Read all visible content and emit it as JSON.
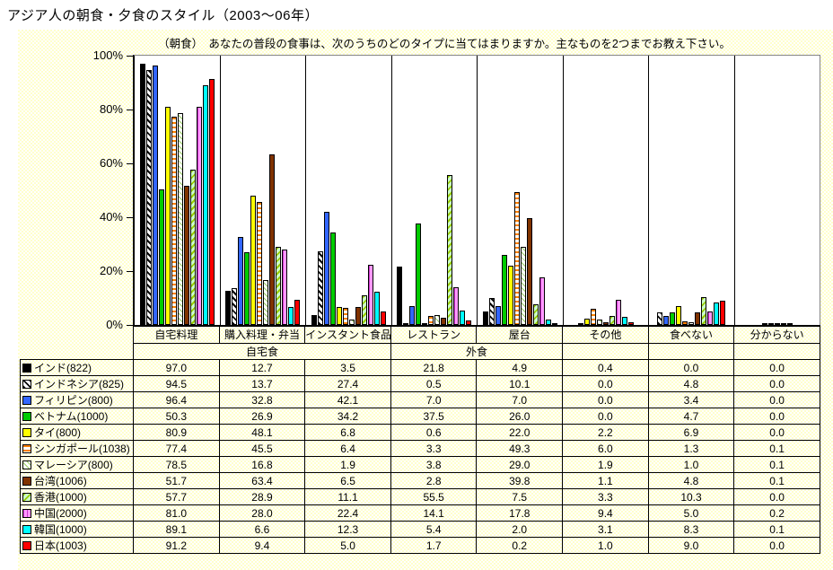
{
  "page_title": "アジア人の朝食・夕食のスタイル（2003〜06年）",
  "chart": {
    "subtitle": "（朝食）　あなたの普段の食事は、次のうちのどのタイプに当てはまりますか。主なものを2つまでお教え下さい。",
    "y_ticks": [
      "100%",
      "80%",
      "60%",
      "40%",
      "20%",
      "0%"
    ],
    "background_color": "#FFFFCC",
    "plot_background": "#FFFFFF"
  },
  "chart_data": {
    "type": "bar",
    "title": "アジア人の朝食・夕食のスタイル（2003〜06年）",
    "subtitle": "（朝食）　あなたの普段の食事は、次のうちのどのタイプに当てはまりますか。主なものを2つまでお教え下さい。",
    "ylabel": "",
    "xlabel": "",
    "ylim": [
      0,
      100
    ],
    "grid": "vertical-category-separators-only",
    "legend_position": "data-table-below",
    "categories": [
      "自宅料理",
      "購入料理・弁当",
      "インスタント食品",
      "レストラン",
      "屋台",
      "その他",
      "食べない",
      "分からない"
    ],
    "category_groups": [
      {
        "label": "自宅食",
        "span": 3
      },
      {
        "label": "外食",
        "span": 2
      },
      {
        "label": "",
        "span": 1
      },
      {
        "label": "",
        "span": 1
      },
      {
        "label": "",
        "span": 1
      }
    ],
    "series": [
      {
        "name": "インド(822)",
        "color": "#000000",
        "pattern": "solid",
        "pattern_bg": "",
        "values": [
          97.0,
          12.7,
          3.5,
          21.8,
          4.9,
          0.4,
          0.0,
          0.0
        ]
      },
      {
        "name": "インドネシア(825)",
        "color": "#000000",
        "pattern": "diag",
        "pattern_bg": "#FFFFFF",
        "values": [
          94.5,
          13.7,
          27.4,
          0.5,
          10.1,
          0.0,
          4.8,
          0.0
        ]
      },
      {
        "name": "フィリピン(800)",
        "color": "#3366FF",
        "pattern": "solid",
        "pattern_bg": "",
        "values": [
          96.4,
          32.8,
          42.1,
          7.0,
          7.0,
          0.0,
          3.4,
          0.0
        ]
      },
      {
        "name": "ベトナム(1000)",
        "color": "#00CC00",
        "pattern": "solid",
        "pattern_bg": "",
        "values": [
          50.3,
          26.9,
          34.2,
          37.5,
          26.0,
          0.0,
          4.7,
          0.0
        ]
      },
      {
        "name": "タイ(800)",
        "color": "#FFFF00",
        "pattern": "solid",
        "pattern_bg": "",
        "values": [
          80.9,
          48.1,
          6.8,
          0.6,
          22.0,
          2.2,
          6.9,
          0.0
        ]
      },
      {
        "name": "シンガポール(1038)",
        "color": "#FF8000",
        "pattern": "hstripe",
        "pattern_bg": "#FFFFFF",
        "values": [
          77.4,
          45.5,
          6.4,
          3.3,
          49.3,
          6.0,
          1.3,
          0.1
        ]
      },
      {
        "name": "マレーシア(800)",
        "color": "#99CC66",
        "pattern": "diag-thin",
        "pattern_bg": "#FFFFFF",
        "values": [
          78.5,
          16.8,
          1.9,
          3.8,
          29.0,
          1.9,
          1.0,
          0.1
        ]
      },
      {
        "name": "台湾(1006)",
        "color": "#803300",
        "pattern": "solid",
        "pattern_bg": "",
        "values": [
          51.7,
          63.4,
          6.5,
          2.8,
          39.8,
          1.1,
          4.8,
          0.1
        ]
      },
      {
        "name": "香港(1000)",
        "color": "#99CC00",
        "pattern": "diag-back",
        "pattern_bg": "#CCFFCC",
        "values": [
          57.7,
          28.9,
          11.1,
          55.5,
          7.5,
          3.3,
          10.3,
          0.0
        ]
      },
      {
        "name": "中国(2000)",
        "color": "#CC33CC",
        "pattern": "vdash",
        "pattern_bg": "#FF99FF",
        "values": [
          81.0,
          28.0,
          22.4,
          14.1,
          17.8,
          9.4,
          5.0,
          0.2
        ]
      },
      {
        "name": "韓国(1000)",
        "color": "#00FFFF",
        "pattern": "solid",
        "pattern_bg": "",
        "values": [
          89.1,
          6.6,
          12.3,
          5.4,
          2.0,
          3.1,
          8.3,
          0.1
        ]
      },
      {
        "name": "日本(1003)",
        "color": "#FF0000",
        "pattern": "solid",
        "pattern_bg": "",
        "values": [
          91.2,
          9.4,
          5.0,
          1.7,
          0.2,
          1.0,
          9.0,
          0.0
        ]
      }
    ]
  }
}
